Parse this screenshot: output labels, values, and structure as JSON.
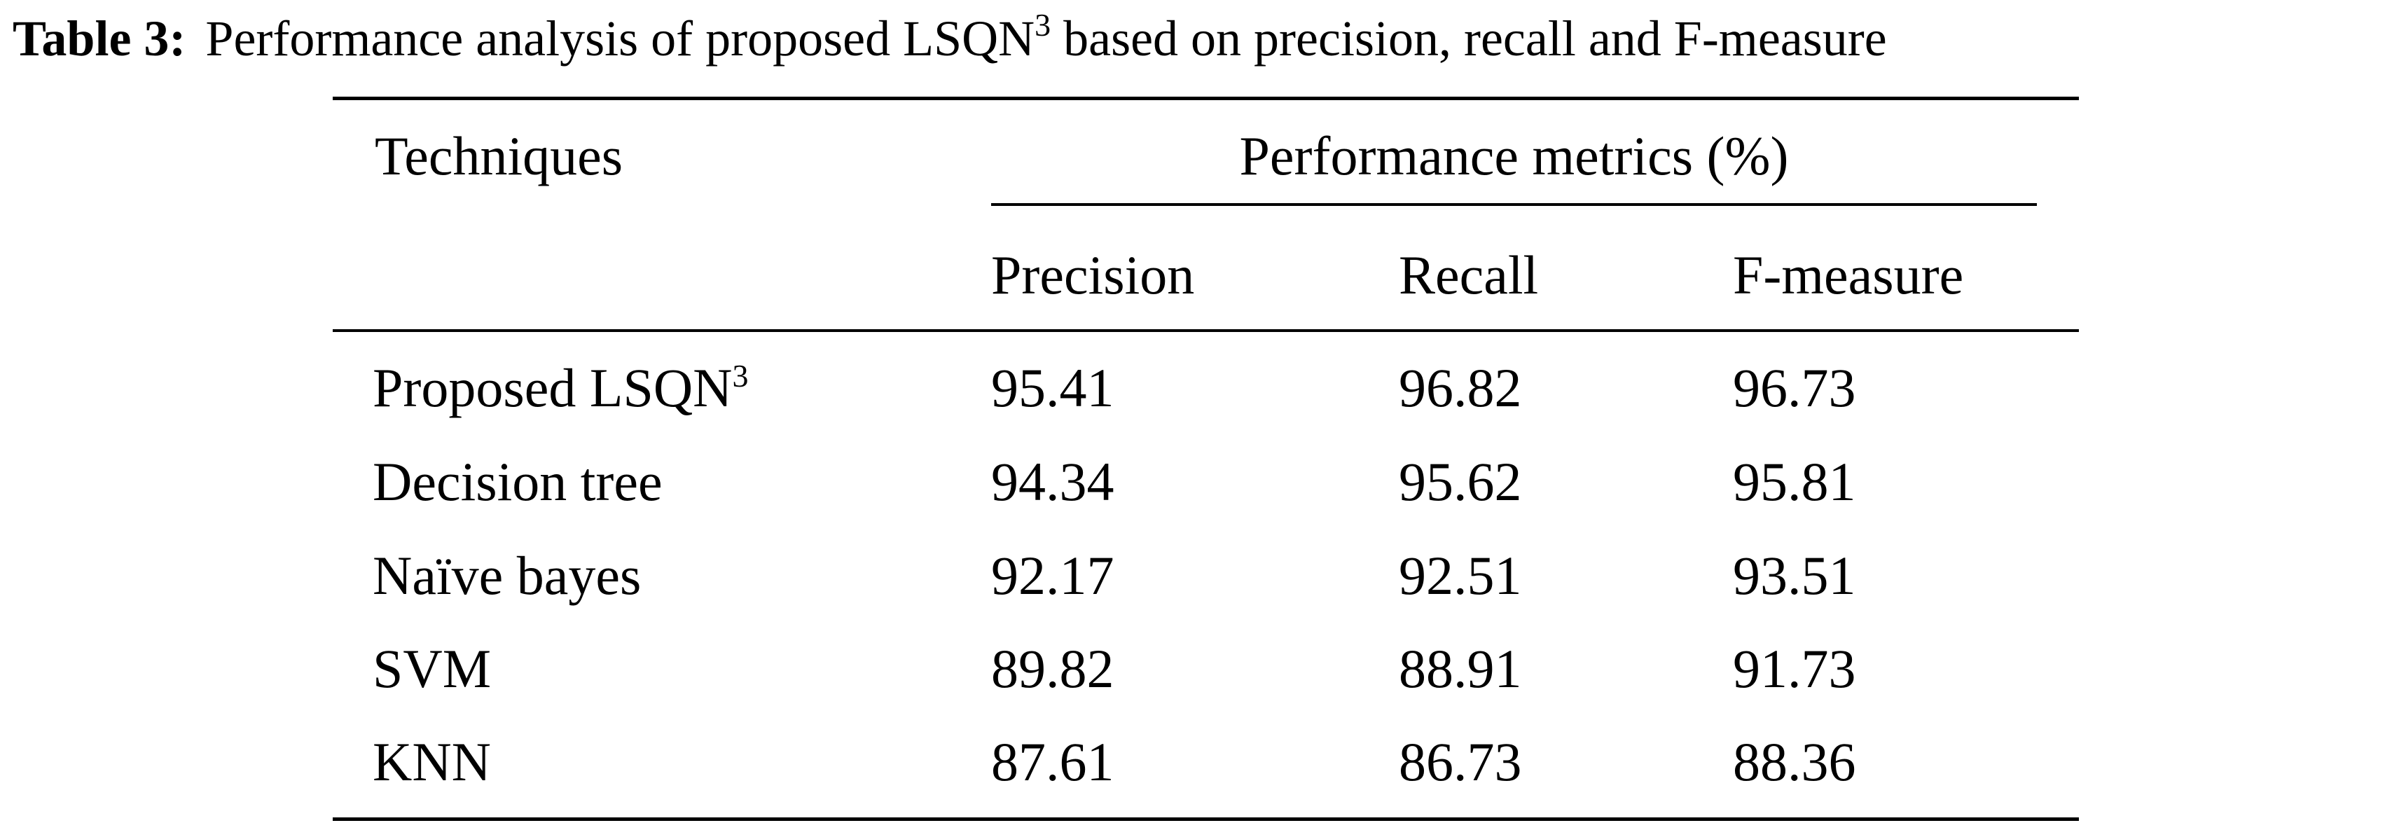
{
  "caption": {
    "label": "Table 3:",
    "text_before_sup": "Performance analysis of proposed LSQN",
    "sup": "3",
    "text_after_sup": " based on precision, recall and F-measure"
  },
  "table": {
    "header_first": "Techniques",
    "header_group": "Performance metrics (%)",
    "columns": [
      "Precision",
      "Recall",
      "F-measure"
    ],
    "rows": [
      {
        "name": "Proposed LSQN",
        "name_sup": "3",
        "values": [
          "95.41",
          "96.82",
          "96.73"
        ]
      },
      {
        "name": "Decision tree",
        "values": [
          "94.34",
          "95.62",
          "95.81"
        ]
      },
      {
        "name": "Naïve bayes",
        "values": [
          "92.17",
          "92.51",
          "93.51"
        ]
      },
      {
        "name": "SVM",
        "values": [
          "89.82",
          "88.91",
          "91.73"
        ]
      },
      {
        "name": "KNN",
        "values": [
          "87.61",
          "86.73",
          "88.36"
        ]
      }
    ]
  }
}
